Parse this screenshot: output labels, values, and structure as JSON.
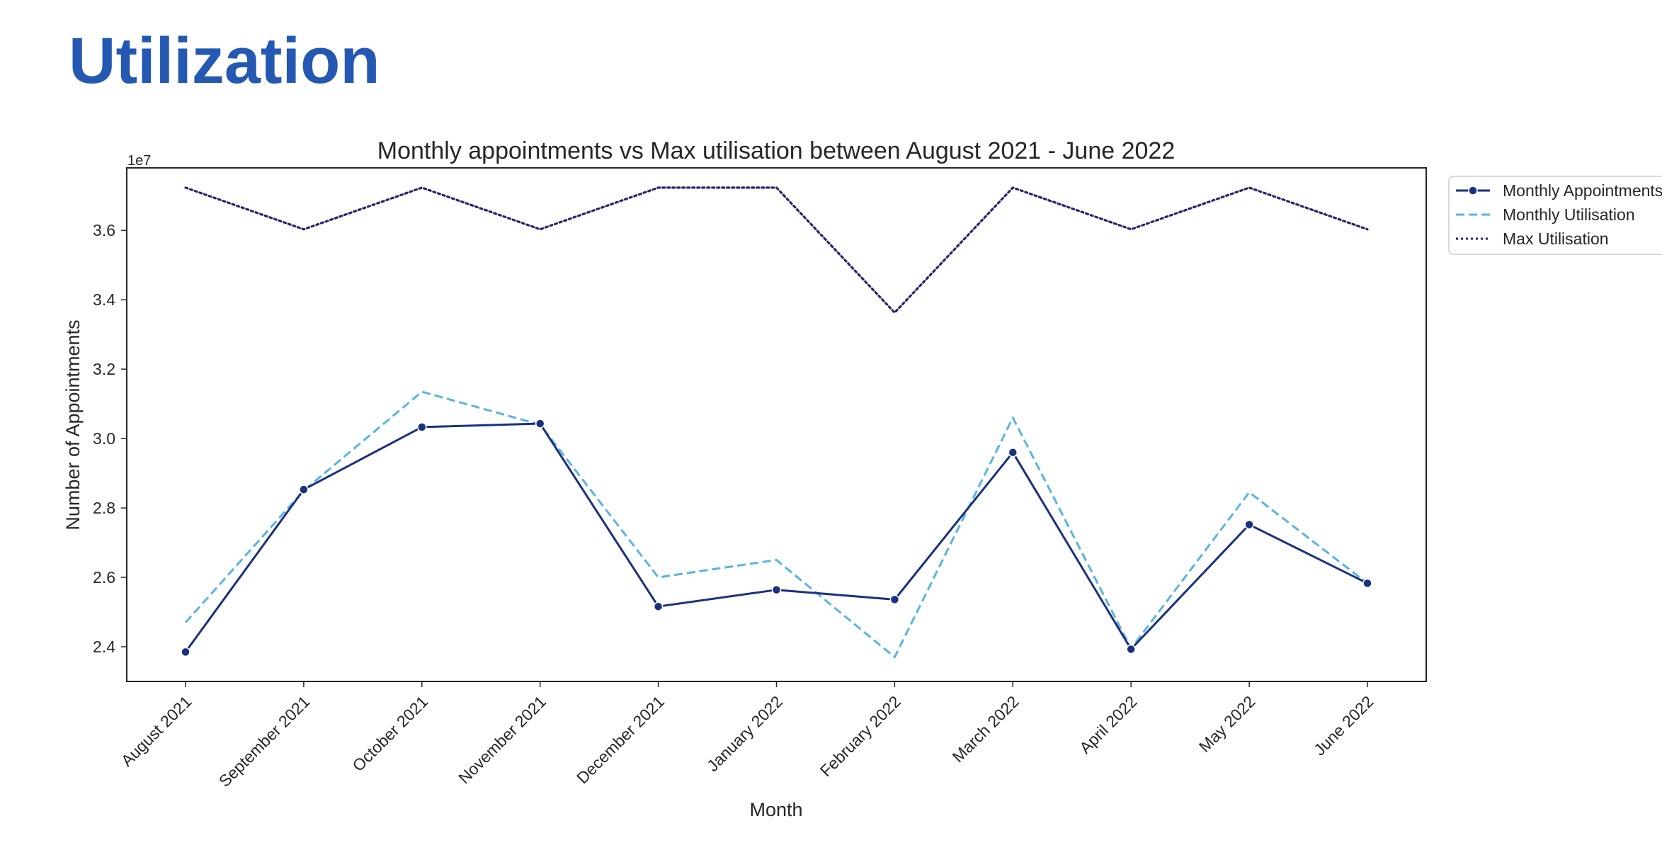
{
  "page": {
    "heading": "Utilization"
  },
  "chart_data": {
    "type": "line",
    "title": "Monthly appointments vs Max utilisation between August 2021 - June 2022",
    "xlabel": "Month",
    "ylabel": "Number of Appointments",
    "y_offset_label": "1e7",
    "y_scale": 10000000,
    "ylim": [
      23.0,
      37.8
    ],
    "yticks": [
      24,
      26,
      28,
      30,
      32,
      34,
      36
    ],
    "ytick_labels": [
      "2.4",
      "2.6",
      "2.8",
      "3.0",
      "3.2",
      "3.4",
      "3.6"
    ],
    "categories": [
      "August 2021",
      "September 2021",
      "October 2021",
      "November 2021",
      "December 2021",
      "January 2022",
      "February 2022",
      "March 2022",
      "April 2022",
      "May 2022",
      "June 2022"
    ],
    "grid": false,
    "legend_position": "outside top-right",
    "series": [
      {
        "name": "Monthly Appointments",
        "color": "#1a3080",
        "style": "solid",
        "marker": "circle",
        "values": [
          23.85,
          28.53,
          30.33,
          30.43,
          25.16,
          25.64,
          25.36,
          29.6,
          23.93,
          27.52,
          25.83
        ]
      },
      {
        "name": "Monthly Utilisation",
        "color": "#5ab4df",
        "style": "dashed",
        "marker": "none",
        "values": [
          24.7,
          28.5,
          31.35,
          30.4,
          26.0,
          26.5,
          23.7,
          30.6,
          23.95,
          28.45,
          25.83
        ]
      },
      {
        "name": "Max Utilisation",
        "color": "#2a2270",
        "style": "dotted",
        "marker": "none",
        "values": [
          37.23,
          36.03,
          37.23,
          36.03,
          37.23,
          37.23,
          33.63,
          37.23,
          36.03,
          37.23,
          36.03
        ]
      }
    ]
  }
}
